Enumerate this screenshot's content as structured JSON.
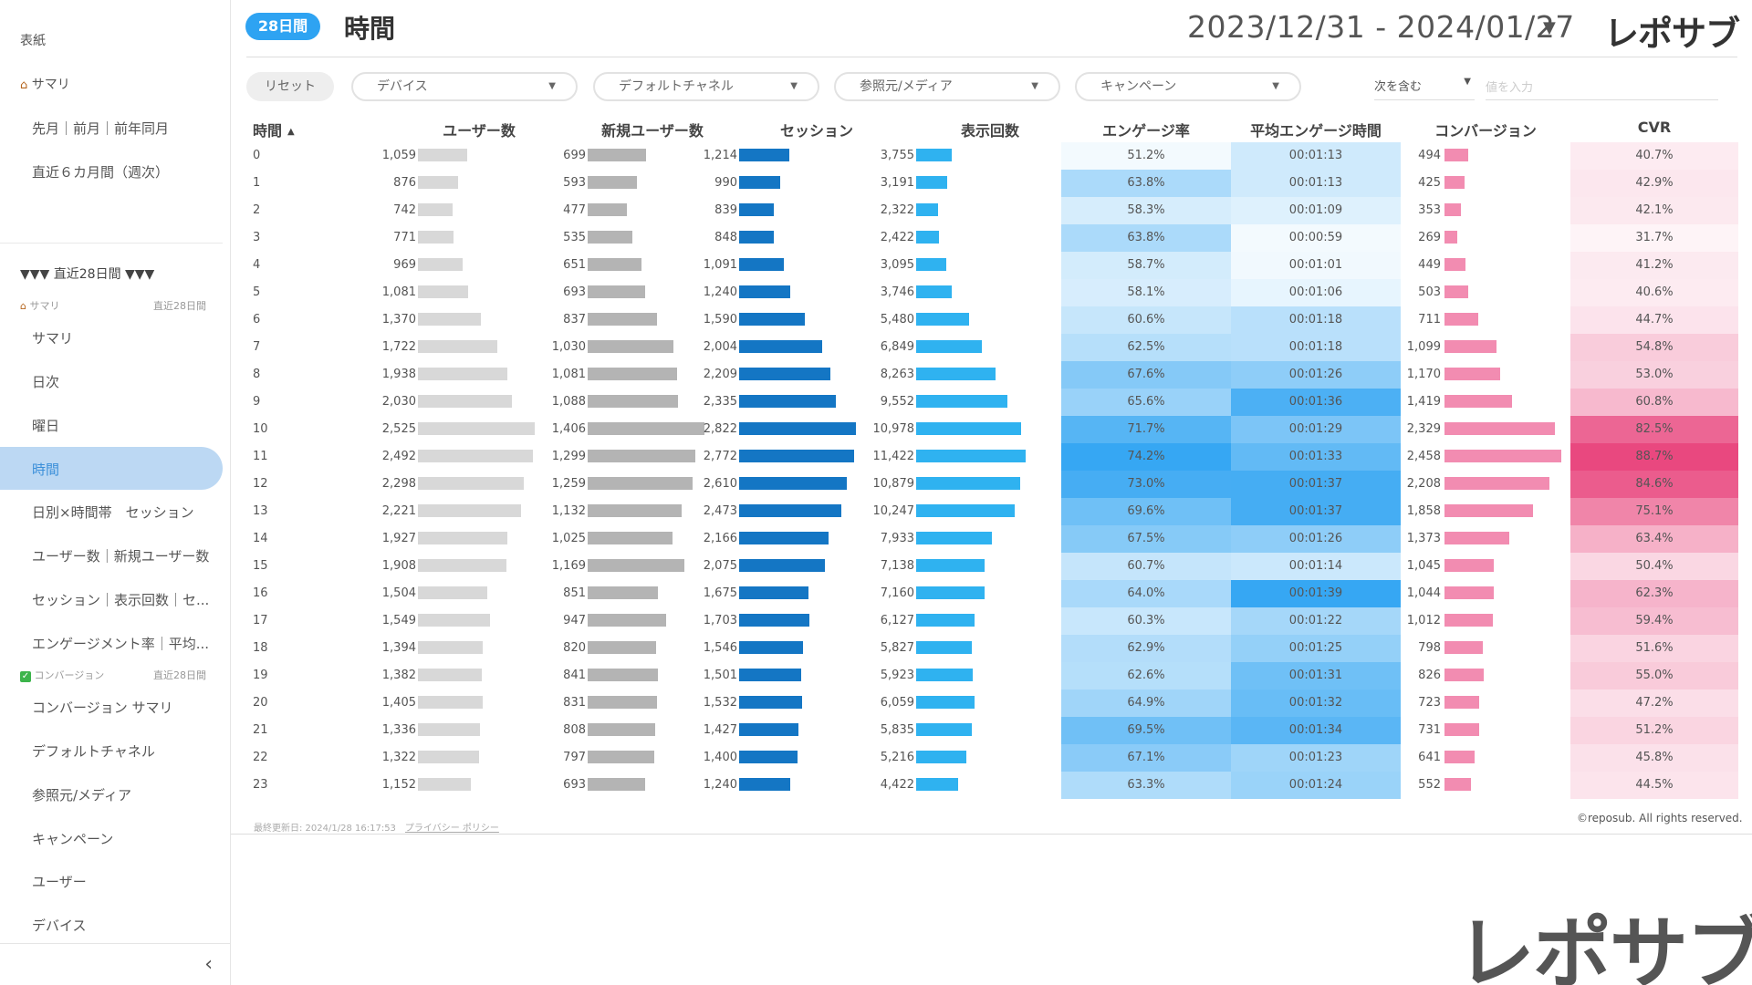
{
  "sidebar": {
    "top_items": [
      "表紙",
      "サマリ",
      "先月｜前月｜前年同月",
      "直近６カ月間（週次）"
    ],
    "section1": {
      "title": "▼▼▼  直近28日間  ▼▼▼",
      "sub_left": "サマリ",
      "sub_right": "直近28日間"
    },
    "items1": [
      "サマリ",
      "日次",
      "曜日",
      "時間",
      "日別×時間帯　セッション",
      "ユーザー数｜新規ユーザー数",
      "セッション｜表示回数｜セ...",
      "エンゲージメント率｜平均..."
    ],
    "section2": {
      "sub_left": "コンバージョン",
      "sub_right": "直近28日間"
    },
    "items2": [
      "コンバージョン サマリ",
      "デフォルトチャネル",
      "参照元/メディア",
      "キャンペーン",
      "ユーザー",
      "デバイス"
    ],
    "collapse_icon": "chevron-left-icon"
  },
  "header": {
    "period_badge": "28日間",
    "title": "時間",
    "date_range": "2023/12/31 - 2024/01/27",
    "brand": "レポサブ"
  },
  "filters": {
    "reset_label": "リセット",
    "dropdowns": [
      "デバイス",
      "デフォルトチャネル",
      "参照元/メディア",
      "キャンペーン"
    ],
    "match_label": "次を含む",
    "value_placeholder": "値を入力"
  },
  "table": {
    "headers": {
      "hour": "時間",
      "users": "ユーザー数",
      "new_users": "新規ユーザー数",
      "sessions": "セッション",
      "views": "表示回数",
      "engagement_rate": "エンゲージ率",
      "avg_engagement_time": "平均エンゲージ時間",
      "conversions": "コンバージョン",
      "cvr": "CVR"
    },
    "rows": [
      {
        "hour": "0",
        "users": "1,059",
        "new_users": "699",
        "sessions": "1,214",
        "views": "3,755",
        "engagement_rate": "51.2%",
        "avg_engagement_time": "00:01:13",
        "conversions": "494",
        "cvr": "40.7%"
      },
      {
        "hour": "1",
        "users": "876",
        "new_users": "593",
        "sessions": "990",
        "views": "3,191",
        "engagement_rate": "63.8%",
        "avg_engagement_time": "00:01:13",
        "conversions": "425",
        "cvr": "42.9%"
      },
      {
        "hour": "2",
        "users": "742",
        "new_users": "477",
        "sessions": "839",
        "views": "2,322",
        "engagement_rate": "58.3%",
        "avg_engagement_time": "00:01:09",
        "conversions": "353",
        "cvr": "42.1%"
      },
      {
        "hour": "3",
        "users": "771",
        "new_users": "535",
        "sessions": "848",
        "views": "2,422",
        "engagement_rate": "63.8%",
        "avg_engagement_time": "00:00:59",
        "conversions": "269",
        "cvr": "31.7%"
      },
      {
        "hour": "4",
        "users": "969",
        "new_users": "651",
        "sessions": "1,091",
        "views": "3,095",
        "engagement_rate": "58.7%",
        "avg_engagement_time": "00:01:01",
        "conversions": "449",
        "cvr": "41.2%"
      },
      {
        "hour": "5",
        "users": "1,081",
        "new_users": "693",
        "sessions": "1,240",
        "views": "3,746",
        "engagement_rate": "58.1%",
        "avg_engagement_time": "00:01:06",
        "conversions": "503",
        "cvr": "40.6%"
      },
      {
        "hour": "6",
        "users": "1,370",
        "new_users": "837",
        "sessions": "1,590",
        "views": "5,480",
        "engagement_rate": "60.6%",
        "avg_engagement_time": "00:01:18",
        "conversions": "711",
        "cvr": "44.7%"
      },
      {
        "hour": "7",
        "users": "1,722",
        "new_users": "1,030",
        "sessions": "2,004",
        "views": "6,849",
        "engagement_rate": "62.5%",
        "avg_engagement_time": "00:01:18",
        "conversions": "1,099",
        "cvr": "54.8%"
      },
      {
        "hour": "8",
        "users": "1,938",
        "new_users": "1,081",
        "sessions": "2,209",
        "views": "8,263",
        "engagement_rate": "67.6%",
        "avg_engagement_time": "00:01:26",
        "conversions": "1,170",
        "cvr": "53.0%"
      },
      {
        "hour": "9",
        "users": "2,030",
        "new_users": "1,088",
        "sessions": "2,335",
        "views": "9,552",
        "engagement_rate": "65.6%",
        "avg_engagement_time": "00:01:36",
        "conversions": "1,419",
        "cvr": "60.8%"
      },
      {
        "hour": "10",
        "users": "2,525",
        "new_users": "1,406",
        "sessions": "2,822",
        "views": "10,978",
        "engagement_rate": "71.7%",
        "avg_engagement_time": "00:01:29",
        "conversions": "2,329",
        "cvr": "82.5%"
      },
      {
        "hour": "11",
        "users": "2,492",
        "new_users": "1,299",
        "sessions": "2,772",
        "views": "11,422",
        "engagement_rate": "74.2%",
        "avg_engagement_time": "00:01:33",
        "conversions": "2,458",
        "cvr": "88.7%"
      },
      {
        "hour": "12",
        "users": "2,298",
        "new_users": "1,259",
        "sessions": "2,610",
        "views": "10,879",
        "engagement_rate": "73.0%",
        "avg_engagement_time": "00:01:37",
        "conversions": "2,208",
        "cvr": "84.6%"
      },
      {
        "hour": "13",
        "users": "2,221",
        "new_users": "1,132",
        "sessions": "2,473",
        "views": "10,247",
        "engagement_rate": "69.6%",
        "avg_engagement_time": "00:01:37",
        "conversions": "1,858",
        "cvr": "75.1%"
      },
      {
        "hour": "14",
        "users": "1,927",
        "new_users": "1,025",
        "sessions": "2,166",
        "views": "7,933",
        "engagement_rate": "67.5%",
        "avg_engagement_time": "00:01:26",
        "conversions": "1,373",
        "cvr": "63.4%"
      },
      {
        "hour": "15",
        "users": "1,908",
        "new_users": "1,169",
        "sessions": "2,075",
        "views": "7,138",
        "engagement_rate": "60.7%",
        "avg_engagement_time": "00:01:14",
        "conversions": "1,045",
        "cvr": "50.4%"
      },
      {
        "hour": "16",
        "users": "1,504",
        "new_users": "851",
        "sessions": "1,675",
        "views": "7,160",
        "engagement_rate": "64.0%",
        "avg_engagement_time": "00:01:39",
        "conversions": "1,044",
        "cvr": "62.3%"
      },
      {
        "hour": "17",
        "users": "1,549",
        "new_users": "947",
        "sessions": "1,703",
        "views": "6,127",
        "engagement_rate": "60.3%",
        "avg_engagement_time": "00:01:22",
        "conversions": "1,012",
        "cvr": "59.4%"
      },
      {
        "hour": "18",
        "users": "1,394",
        "new_users": "820",
        "sessions": "1,546",
        "views": "5,827",
        "engagement_rate": "62.9%",
        "avg_engagement_time": "00:01:25",
        "conversions": "798",
        "cvr": "51.6%"
      },
      {
        "hour": "19",
        "users": "1,382",
        "new_users": "841",
        "sessions": "1,501",
        "views": "5,923",
        "engagement_rate": "62.6%",
        "avg_engagement_time": "00:01:31",
        "conversions": "826",
        "cvr": "55.0%"
      },
      {
        "hour": "20",
        "users": "1,405",
        "new_users": "831",
        "sessions": "1,532",
        "views": "6,059",
        "engagement_rate": "64.9%",
        "avg_engagement_time": "00:01:32",
        "conversions": "723",
        "cvr": "47.2%"
      },
      {
        "hour": "21",
        "users": "1,336",
        "new_users": "808",
        "sessions": "1,427",
        "views": "5,835",
        "engagement_rate": "69.5%",
        "avg_engagement_time": "00:01:34",
        "conversions": "731",
        "cvr": "51.2%"
      },
      {
        "hour": "22",
        "users": "1,322",
        "new_users": "797",
        "sessions": "1,400",
        "views": "5,216",
        "engagement_rate": "67.1%",
        "avg_engagement_time": "00:01:23",
        "conversions": "641",
        "cvr": "45.8%"
      },
      {
        "hour": "23",
        "users": "1,152",
        "new_users": "693",
        "sessions": "1,240",
        "views": "4,422",
        "engagement_rate": "63.3%",
        "avg_engagement_time": "00:01:24",
        "conversions": "552",
        "cvr": "44.5%"
      }
    ]
  },
  "footer": {
    "updated": "最終更新日: 2024/1/28 16:17:53",
    "privacy_link": "プライバシー ポリシー",
    "copyright": "©reposub. All rights reserved."
  },
  "watermark_brand": "レポサブ",
  "colors": {
    "accent": "#2ea3f2",
    "sessions_bar": "#1476c4",
    "views_bar": "#2fb2f0",
    "conversions_bar": "#f28cb1",
    "cvr_heat": "#e8417a",
    "engagement_heat": "#2ea3f2"
  }
}
